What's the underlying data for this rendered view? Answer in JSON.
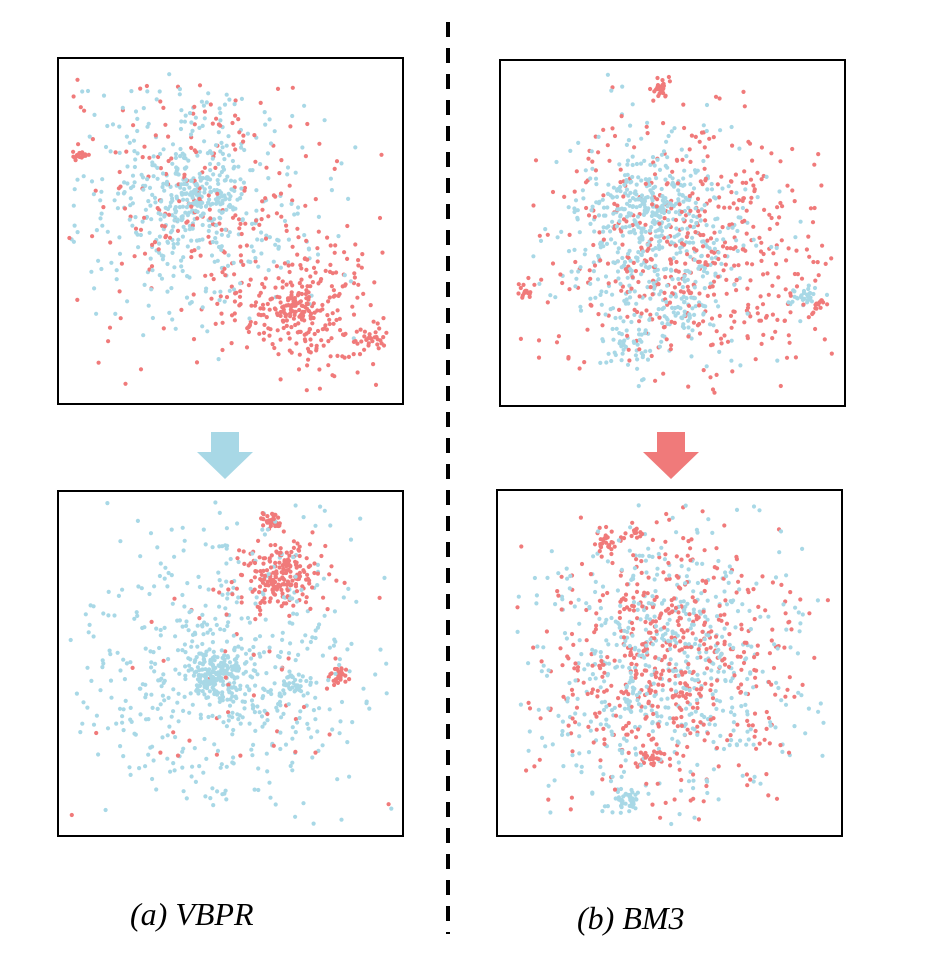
{
  "figure": {
    "colors": {
      "cluster_a": "#f07a7a",
      "cluster_b": "#a8d8e6",
      "frame": "#000000"
    },
    "captions": {
      "vbpr": "(a) VBPR",
      "bm3": "(b) BM3"
    },
    "arrows": {
      "vbpr_color": "#a8d8e6",
      "bm3_color": "#f07a7a",
      "direction": "down"
    }
  },
  "chart_data": [
    {
      "type": "scatter",
      "group": "(a) VBPR",
      "stage": "top",
      "series": [
        {
          "color": "#a8d8e6",
          "clusters": [
            {
              "cx": 0.4,
              "cy": 0.4,
              "sx": 0.17,
              "sy": 0.17,
              "n": 420
            },
            {
              "cx": 0.4,
              "cy": 0.4,
              "sx": 0.06,
              "sy": 0.05,
              "n": 160
            }
          ]
        },
        {
          "color": "#f07a7a",
          "clusters": [
            {
              "cx": 0.45,
              "cy": 0.4,
              "sx": 0.22,
              "sy": 0.2,
              "n": 220
            },
            {
              "cx": 0.7,
              "cy": 0.72,
              "sx": 0.12,
              "sy": 0.1,
              "n": 260
            },
            {
              "cx": 0.68,
              "cy": 0.72,
              "sx": 0.03,
              "sy": 0.03,
              "n": 60
            },
            {
              "cx": 0.06,
              "cy": 0.28,
              "sx": 0.012,
              "sy": 0.008,
              "n": 16
            },
            {
              "cx": 0.92,
              "cy": 0.81,
              "sx": 0.025,
              "sy": 0.012,
              "n": 22
            }
          ]
        }
      ]
    },
    {
      "type": "scatter",
      "group": "(a) VBPR",
      "stage": "bottom",
      "series": [
        {
          "color": "#a8d8e6",
          "clusters": [
            {
              "cx": 0.48,
              "cy": 0.52,
              "sx": 0.23,
              "sy": 0.22,
              "n": 560
            },
            {
              "cx": 0.46,
              "cy": 0.53,
              "sx": 0.05,
              "sy": 0.04,
              "n": 200
            },
            {
              "cx": 0.68,
              "cy": 0.56,
              "sx": 0.03,
              "sy": 0.02,
              "n": 40
            }
          ]
        },
        {
          "color": "#f07a7a",
          "clusters": [
            {
              "cx": 0.65,
              "cy": 0.24,
              "sx": 0.06,
              "sy": 0.05,
              "n": 200
            },
            {
              "cx": 0.62,
              "cy": 0.09,
              "sx": 0.015,
              "sy": 0.015,
              "n": 30
            },
            {
              "cx": 0.82,
              "cy": 0.54,
              "sx": 0.015,
              "sy": 0.015,
              "n": 30
            },
            {
              "cx": 0.5,
              "cy": 0.52,
              "sx": 0.24,
              "sy": 0.22,
              "n": 60
            }
          ]
        }
      ]
    },
    {
      "type": "scatter",
      "group": "(b) BM3",
      "stage": "top",
      "series": [
        {
          "color": "#a8d8e6",
          "clusters": [
            {
              "cx": 0.46,
              "cy": 0.53,
              "sx": 0.14,
              "sy": 0.16,
              "n": 480
            },
            {
              "cx": 0.42,
              "cy": 0.42,
              "sx": 0.06,
              "sy": 0.05,
              "n": 120
            },
            {
              "cx": 0.88,
              "cy": 0.68,
              "sx": 0.02,
              "sy": 0.015,
              "n": 30
            },
            {
              "cx": 0.37,
              "cy": 0.82,
              "sx": 0.04,
              "sy": 0.03,
              "n": 40
            },
            {
              "cx": 0.52,
              "cy": 0.73,
              "sx": 0.05,
              "sy": 0.03,
              "n": 40
            }
          ]
        },
        {
          "color": "#f07a7a",
          "clusters": [
            {
              "cx": 0.55,
              "cy": 0.55,
              "sx": 0.21,
              "sy": 0.19,
              "n": 520
            },
            {
              "cx": 0.46,
              "cy": 0.08,
              "sx": 0.015,
              "sy": 0.015,
              "n": 30
            },
            {
              "cx": 0.07,
              "cy": 0.67,
              "sx": 0.012,
              "sy": 0.008,
              "n": 16
            },
            {
              "cx": 0.93,
              "cy": 0.71,
              "sx": 0.012,
              "sy": 0.01,
              "n": 12
            }
          ]
        }
      ]
    },
    {
      "type": "scatter",
      "group": "(b) BM3",
      "stage": "bottom",
      "series": [
        {
          "color": "#a8d8e6",
          "clusters": [
            {
              "cx": 0.5,
              "cy": 0.5,
              "sx": 0.19,
              "sy": 0.2,
              "n": 600
            },
            {
              "cx": 0.38,
              "cy": 0.9,
              "sx": 0.03,
              "sy": 0.02,
              "n": 40
            }
          ]
        },
        {
          "color": "#f07a7a",
          "clusters": [
            {
              "cx": 0.5,
              "cy": 0.5,
              "sx": 0.19,
              "sy": 0.2,
              "n": 560
            },
            {
              "cx": 0.32,
              "cy": 0.15,
              "sx": 0.02,
              "sy": 0.02,
              "n": 25
            },
            {
              "cx": 0.45,
              "cy": 0.78,
              "sx": 0.03,
              "sy": 0.02,
              "n": 30
            },
            {
              "cx": 0.4,
              "cy": 0.12,
              "sx": 0.012,
              "sy": 0.012,
              "n": 14
            }
          ]
        }
      ]
    }
  ]
}
